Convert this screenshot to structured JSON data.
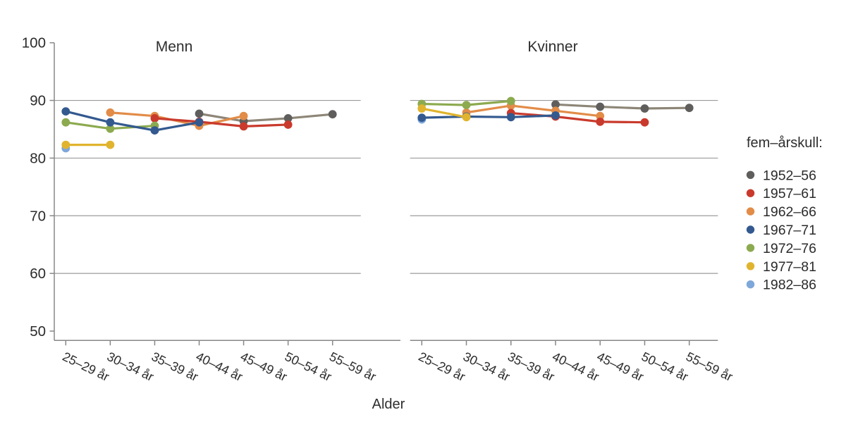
{
  "page": {
    "background": "#ffffff",
    "text_color": "#2e2e2e"
  },
  "chart_data": {
    "type": "line",
    "title": "",
    "xlabel": "Alder",
    "ylabel": "",
    "ylim": [
      50,
      100
    ],
    "yticks": [
      100,
      90,
      80,
      70,
      60,
      50
    ],
    "gridlines_at": [
      90,
      80,
      70,
      60
    ],
    "grid": true,
    "legend_position": "right",
    "categories": [
      "25–29 år",
      "30–34 år",
      "35–39 år",
      "40–44 år",
      "45–49 år",
      "50–54 år",
      "55–59 år"
    ],
    "panels": [
      {
        "title": "Menn",
        "series": [
          {
            "name": "1952–56",
            "values": [
              null,
              null,
              null,
              87.7,
              86.4,
              86.9,
              87.6
            ]
          },
          {
            "name": "1957–61",
            "values": [
              null,
              null,
              86.9,
              86.3,
              85.5,
              85.8,
              null
            ]
          },
          {
            "name": "1962–66",
            "values": [
              null,
              87.9,
              87.3,
              85.6,
              87.3,
              null,
              null
            ]
          },
          {
            "name": "1967–71",
            "values": [
              88.1,
              86.2,
              84.8,
              86.2,
              null,
              null,
              null
            ]
          },
          {
            "name": "1972–76",
            "values": [
              86.2,
              85.1,
              85.6,
              null,
              null,
              null,
              null
            ]
          },
          {
            "name": "1977–81",
            "values": [
              82.3,
              82.3,
              null,
              null,
              null,
              null,
              null
            ]
          },
          {
            "name": "1982–86",
            "values": [
              81.7,
              null,
              null,
              null,
              null,
              null,
              null
            ]
          }
        ]
      },
      {
        "title": "Kvinner",
        "series": [
          {
            "name": "1952–56",
            "values": [
              null,
              null,
              null,
              89.3,
              88.9,
              88.6,
              88.7
            ]
          },
          {
            "name": "1957–61",
            "values": [
              null,
              null,
              87.8,
              87.2,
              86.3,
              86.2,
              null
            ]
          },
          {
            "name": "1962–66",
            "values": [
              null,
              87.9,
              89.1,
              88.2,
              87.3,
              null,
              null
            ]
          },
          {
            "name": "1967–71",
            "values": [
              87.0,
              87.2,
              87.1,
              87.4,
              null,
              null,
              null
            ]
          },
          {
            "name": "1972–76",
            "values": [
              89.4,
              89.2,
              89.9,
              null,
              null,
              null,
              null
            ]
          },
          {
            "name": "1977–81",
            "values": [
              88.6,
              87.1,
              null,
              null,
              null,
              null,
              null
            ]
          },
          {
            "name": "1982–86",
            "values": [
              86.7,
              null,
              null,
              null,
              null,
              null,
              null
            ]
          }
        ]
      }
    ],
    "legend": {
      "title": "fem–årskull:",
      "entries": [
        {
          "label": "1952–56",
          "color": "#5f5e5c",
          "line_color": "#8d8677"
        },
        {
          "label": "1957–61",
          "color": "#c93a2c",
          "line_color": "#c93a2c"
        },
        {
          "label": "1962–66",
          "color": "#e28c48",
          "line_color": "#e28c48"
        },
        {
          "label": "1967–71",
          "color": "#33598f",
          "line_color": "#33598f"
        },
        {
          "label": "1972–76",
          "color": "#8caa4f",
          "line_color": "#8caa4f"
        },
        {
          "label": "1977–81",
          "color": "#e0b42e",
          "line_color": "#e0b42e"
        },
        {
          "label": "1982–86",
          "color": "#7ea7da",
          "line_color": "#7ea7da"
        }
      ]
    }
  }
}
